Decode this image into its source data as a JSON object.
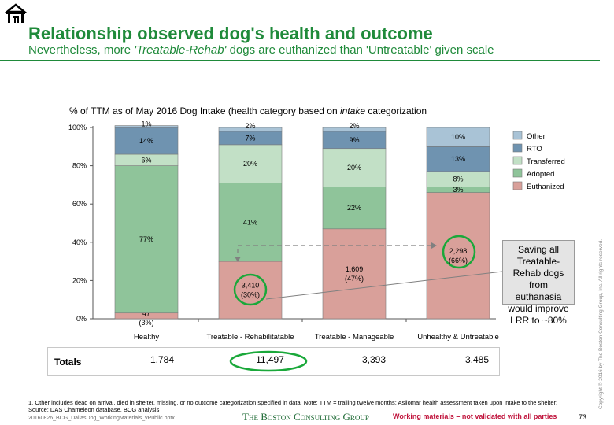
{
  "header": {
    "title": "Relationship observed dog's health and outcome",
    "subtitle_prefix": "Nevertheless, more ",
    "subtitle_emph": "'Treatable-Rehab'",
    "subtitle_suffix": " dogs are euthanized than 'Untreatable' given scale"
  },
  "chart_title": {
    "prefix": "% of TTM as of May 2016 Dog Intake (health category based on ",
    "emph": "intake",
    "suffix": " categorization"
  },
  "chart_data": {
    "type": "bar",
    "stacked": true,
    "categories": [
      "Healthy",
      "Treatable - Rehabilitatable",
      "Treatable - Manageable",
      "Unhealthy & Untreatable"
    ],
    "series": [
      {
        "name": "Euthanized",
        "color": "#d9a09a",
        "values": [
          3,
          30,
          47,
          66
        ],
        "labels": [
          "47\n(3%)",
          "3,410\n(30%)",
          "1,609\n(47%)",
          "2,298\n(66%)"
        ]
      },
      {
        "name": "Adopted",
        "color": "#8fc49a",
        "values": [
          77,
          41,
          22,
          3
        ],
        "labels": [
          "77%",
          "41%",
          "22%",
          "3%"
        ]
      },
      {
        "name": "Transferred",
        "color": "#c2e0c6",
        "values": [
          6,
          20,
          20,
          8
        ],
        "labels": [
          "6%",
          "20%",
          "20%",
          "8%"
        ]
      },
      {
        "name": "RTO",
        "color": "#6f93b0",
        "values": [
          14,
          7,
          9,
          13
        ],
        "labels": [
          "14%",
          "7%",
          "9%",
          "13%"
        ]
      },
      {
        "name": "Other",
        "color": "#a9c3d6",
        "values": [
          1,
          2,
          2,
          10
        ],
        "labels": [
          "1%",
          "2%",
          "2%",
          "10%"
        ]
      }
    ],
    "legend_order": [
      "Other",
      "RTO",
      "Transferred",
      "Adopted",
      "Euthanized"
    ],
    "yticks": [
      "0%",
      "20%",
      "40%",
      "60%",
      "80%",
      "100%"
    ],
    "ylim": [
      0,
      100
    ],
    "legend_position": "right",
    "highlighted_labels": [
      "3,410\n(30%)",
      "2,298\n(66%)"
    ]
  },
  "callout": {
    "text": "Saving all Treatable-Rehab dogs from euthanasia would improve LRR to ~80%"
  },
  "totals": {
    "label": "Totals",
    "values": [
      "1,784",
      "11,497",
      "3,393",
      "3,485"
    ],
    "highlighted_index": 1
  },
  "footer": {
    "footnote_line1": "1. Other includes dead on arrival, died in shelter, missing, or no outcome categorization specified in data; Note: TTM = trailing twelve months; Asilomar health assessment taken upon intake to the shelter;",
    "footnote_line2": "Source: DAS Chameleon database, BCG analysis",
    "filepath": "20160826_BCG_DallasDog_WorkingMaterials_vPublic.pptx",
    "brand": "The Boston Consulting Group",
    "working": "Working materials – not validated with all parties",
    "page": "73",
    "copyright": "Copyright © 2016 by The Boston Consulting Group, Inc. All rights reserved."
  },
  "colors": {
    "title_green": "#1f8a3a",
    "highlight_circle": "#1aa83a",
    "warning_red": "#c0143c"
  }
}
